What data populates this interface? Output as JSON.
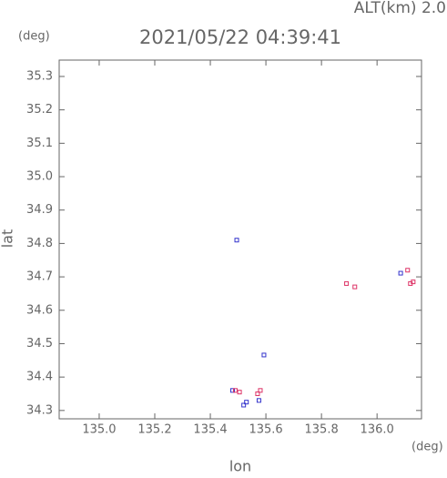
{
  "chart_data": {
    "type": "scatter",
    "title": "2021/05/22 04:39:41",
    "altitude_label": "ALT(km) 2.0",
    "y_unit": "(deg)",
    "x_unit": "(deg)",
    "x_label": "lon",
    "y_label": "lat",
    "xlim": [
      134.856,
      136.16
    ],
    "ylim": [
      34.275,
      35.349
    ],
    "xticks": [
      {
        "value": 135.0,
        "label": "135.0"
      },
      135.2,
      135.4,
      135.6,
      135.8,
      {
        "value": 136.0,
        "label": "136.0"
      }
    ],
    "yticks": [
      35.3,
      35.2,
      35.1,
      {
        "value": 35.0,
        "label": "35.0"
      },
      34.9,
      34.8,
      34.7,
      34.6,
      34.5,
      34.4,
      34.3
    ],
    "series": [
      {
        "color": "#3333cc",
        "x": [
          135.495,
          135.593,
          135.52,
          135.53,
          135.48,
          136.085,
          135.575
        ],
        "values": [
          34.81,
          34.466,
          34.316,
          34.325,
          34.36,
          34.711,
          34.33
        ]
      },
      {
        "color": "#dd3366",
        "x": [
          135.89,
          135.92,
          136.11,
          136.12,
          136.13,
          135.57,
          135.49,
          135.58,
          135.505
        ],
        "values": [
          34.68,
          34.67,
          34.72,
          34.68,
          34.685,
          34.35,
          34.36,
          34.36,
          34.355
        ]
      }
    ]
  }
}
